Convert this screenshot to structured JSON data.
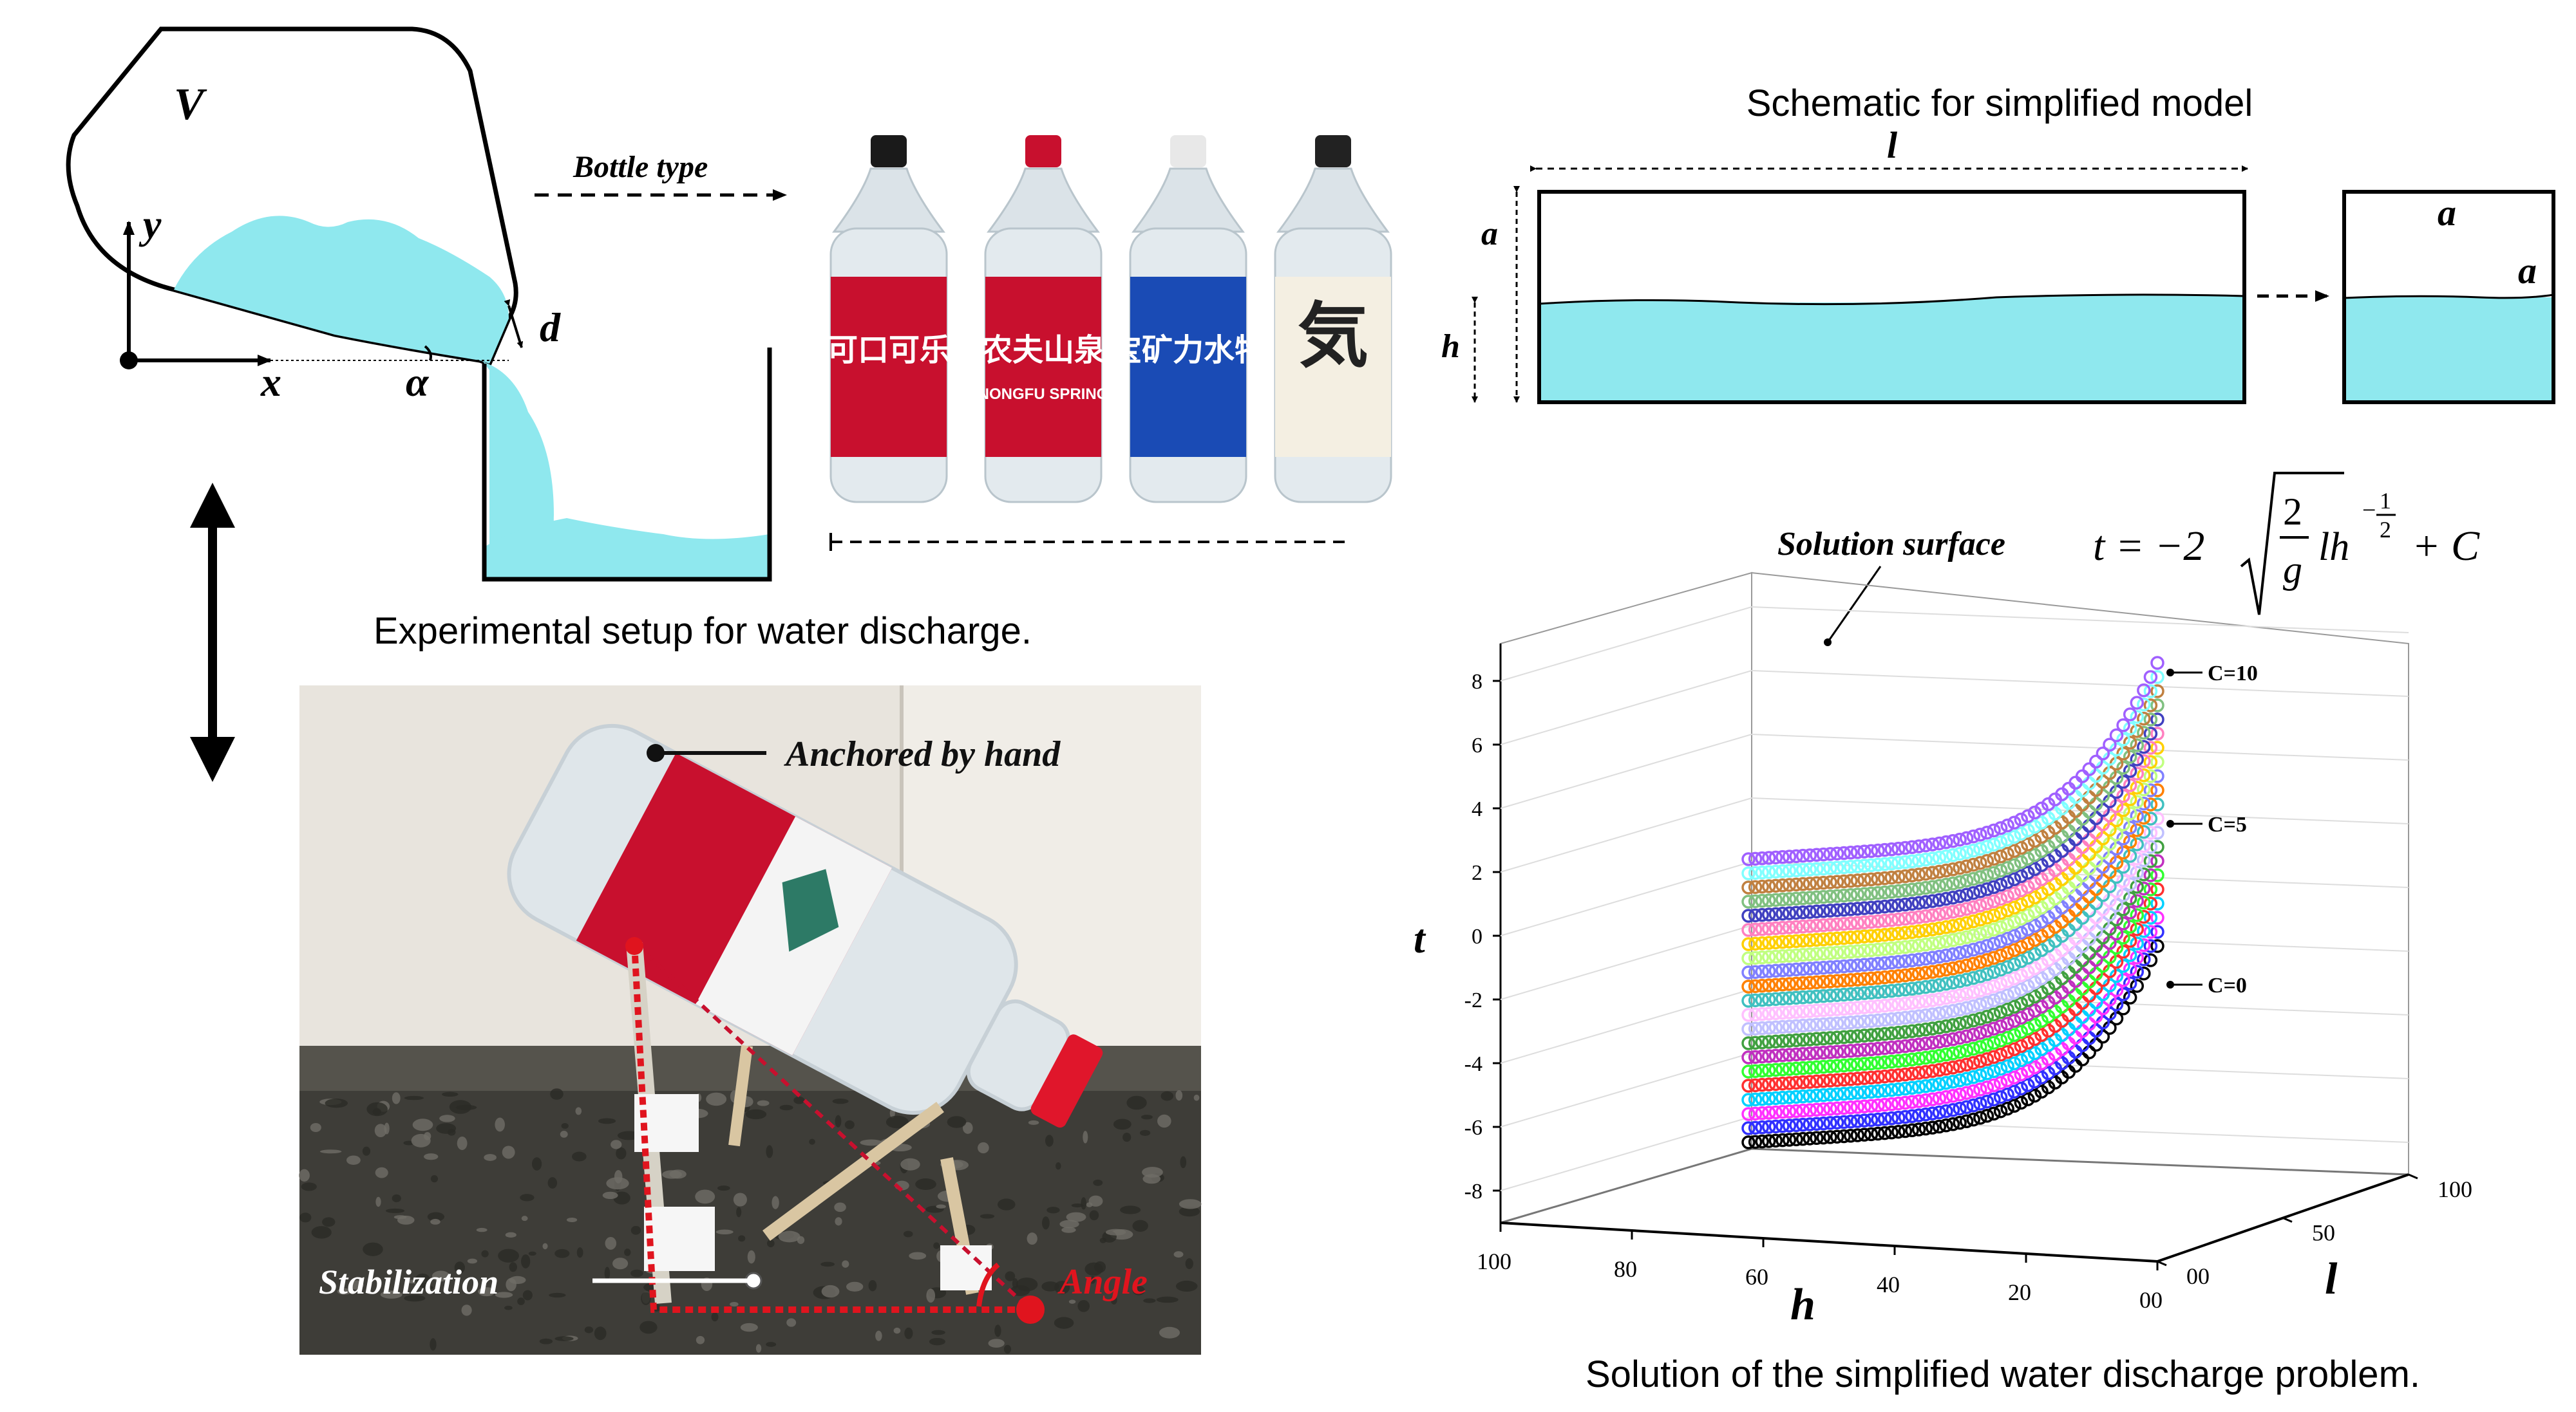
{
  "bottle_diagram": {
    "volume_label": "V",
    "y_label": "y",
    "x_label": "x",
    "alpha_label": "α",
    "d_label": "d",
    "bottle_type_label": "Bottle type"
  },
  "experiment": {
    "caption": "Experimental setup for water discharge.",
    "anchored_label": "Anchored by hand",
    "stabilization_label": "Stabilization",
    "angle_label": "Angle"
  },
  "bottle_photos": [
    {
      "brand": "可口可乐",
      "cap_color": "#1a1a1a",
      "label_color": "#c8102e"
    },
    {
      "brand": "农夫山泉",
      "sub": "NONGFU SPRING",
      "cap_color": "#c8102e",
      "label_color": "#c8102e"
    },
    {
      "brand": "宝矿力水特",
      "cap_color": "#e8e8e8",
      "label_color": "#1a4bb5"
    },
    {
      "brand": "気",
      "cap_color": "#222222",
      "label_color": "#f4efe2"
    }
  ],
  "schematic": {
    "title": "Schematic for simplified model",
    "l_label": "l",
    "a_label": "a",
    "h_label": "h",
    "small_a_top": "a",
    "small_a_side": "a"
  },
  "solution": {
    "surface_label": "Solution surface",
    "formula_lhs": "t = −2",
    "formula_frac_num": "2",
    "formula_frac_den": "g",
    "formula_tail": "lh",
    "formula_exp_num": "1",
    "formula_exp_den": "2",
    "formula_const": "+ C",
    "caption": "Solution of the simplified water discharge problem."
  },
  "chart_data": {
    "type": "scatter",
    "zlabel": "t",
    "xlabel": "h",
    "ylabel": "l",
    "z_ticks": [
      "8",
      "6",
      "4",
      "2",
      "0",
      "-2",
      "-4",
      "-6",
      "-8"
    ],
    "h_ticks": [
      "100",
      "80",
      "60",
      "40",
      "20",
      "00"
    ],
    "l_ticks": [
      "00",
      "50",
      "100"
    ],
    "annotations": [
      "C=10",
      "C=5",
      "C=0"
    ],
    "series_colors": [
      "#000000",
      "#3030ff",
      "#ff30ff",
      "#00d0ff",
      "#ff3030",
      "#30ff30",
      "#c030c0",
      "#40a040",
      "#c0c0ff",
      "#ffc0ff",
      "#40c0c0",
      "#ff8000",
      "#8080ff",
      "#c0ff80",
      "#ffd000",
      "#ff80c0",
      "#4040c0",
      "#80c080",
      "#c08040",
      "#80ffff",
      "#a060ff"
    ]
  }
}
